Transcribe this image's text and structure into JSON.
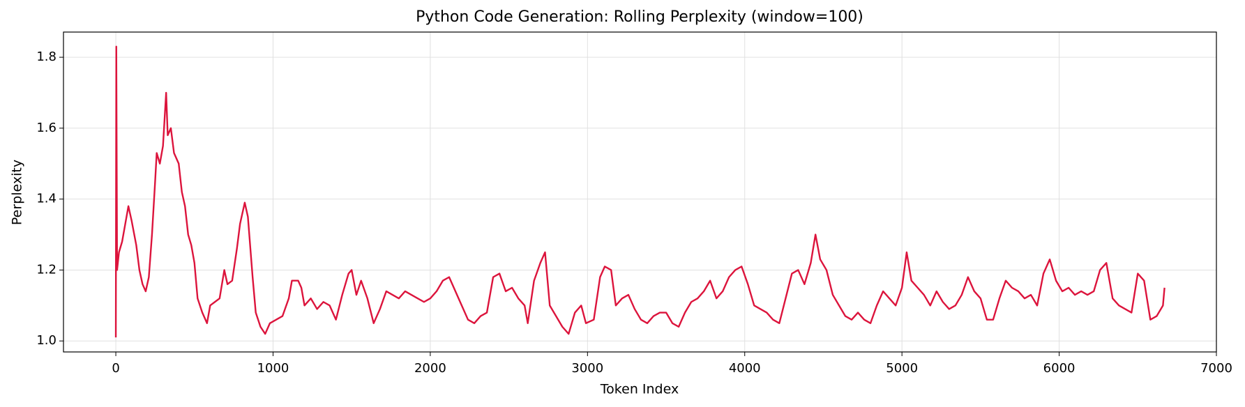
{
  "chart_data": {
    "type": "line",
    "title": "Python Code Generation: Rolling Perplexity (window=100)",
    "x_label": "Token Index",
    "y_label": "Perplexity",
    "xlim": [
      -333,
      7000
    ],
    "xticks": [
      0,
      1000,
      2000,
      3000,
      4000,
      5000,
      6000,
      7000
    ],
    "ylim": [
      0.969,
      1.871
    ],
    "yticks": [
      {
        "value": 1.0,
        "label": "1.0"
      },
      1.2,
      1.4,
      1.6,
      1.8
    ],
    "grid": true,
    "x": [
      0,
      3,
      8,
      20,
      40,
      60,
      80,
      100,
      130,
      150,
      170,
      190,
      210,
      230,
      250,
      260,
      280,
      300,
      320,
      330,
      350,
      370,
      400,
      420,
      440,
      460,
      480,
      500,
      520,
      550,
      580,
      600,
      630,
      660,
      690,
      710,
      740,
      770,
      790,
      820,
      840,
      870,
      890,
      920,
      950,
      980,
      1020,
      1060,
      1100,
      1120,
      1160,
      1180,
      1200,
      1240,
      1280,
      1320,
      1360,
      1400,
      1440,
      1480,
      1500,
      1530,
      1560,
      1600,
      1640,
      1680,
      1720,
      1760,
      1800,
      1840,
      1880,
      1920,
      1960,
      2000,
      2040,
      2080,
      2120,
      2160,
      2200,
      2240,
      2280,
      2320,
      2360,
      2400,
      2440,
      2480,
      2520,
      2560,
      2600,
      2620,
      2660,
      2700,
      2730,
      2760,
      2800,
      2840,
      2880,
      2920,
      2960,
      2990,
      3040,
      3080,
      3110,
      3150,
      3180,
      3220,
      3260,
      3300,
      3340,
      3380,
      3420,
      3460,
      3500,
      3540,
      3580,
      3620,
      3660,
      3700,
      3740,
      3780,
      3820,
      3860,
      3900,
      3940,
      3980,
      4020,
      4060,
      4100,
      4140,
      4180,
      4220,
      4260,
      4300,
      4340,
      4380,
      4420,
      4450,
      4480,
      4520,
      4560,
      4600,
      4640,
      4680,
      4720,
      4760,
      4800,
      4840,
      4880,
      4920,
      4960,
      5000,
      5030,
      5060,
      5100,
      5140,
      5180,
      5220,
      5260,
      5300,
      5340,
      5380,
      5420,
      5460,
      5500,
      5540,
      5580,
      5620,
      5660,
      5700,
      5740,
      5780,
      5820,
      5860,
      5900,
      5940,
      5980,
      6020,
      6060,
      6100,
      6140,
      6180,
      6220,
      6260,
      6300,
      6340,
      6380,
      6420,
      6460,
      6500,
      6540,
      6580,
      6620,
      6660,
      6670
    ],
    "series": [
      {
        "name": "Rolling Perplexity",
        "color": "#dc143c",
        "values": [
          1.01,
          1.83,
          1.2,
          1.25,
          1.28,
          1.33,
          1.38,
          1.34,
          1.27,
          1.2,
          1.16,
          1.14,
          1.18,
          1.3,
          1.45,
          1.53,
          1.5,
          1.55,
          1.7,
          1.58,
          1.6,
          1.53,
          1.5,
          1.42,
          1.38,
          1.3,
          1.27,
          1.22,
          1.12,
          1.08,
          1.05,
          1.1,
          1.11,
          1.12,
          1.2,
          1.16,
          1.17,
          1.26,
          1.33,
          1.39,
          1.35,
          1.18,
          1.08,
          1.04,
          1.02,
          1.05,
          1.06,
          1.07,
          1.12,
          1.17,
          1.17,
          1.15,
          1.1,
          1.12,
          1.09,
          1.11,
          1.1,
          1.06,
          1.13,
          1.19,
          1.2,
          1.13,
          1.17,
          1.12,
          1.05,
          1.09,
          1.14,
          1.13,
          1.12,
          1.14,
          1.13,
          1.12,
          1.11,
          1.12,
          1.14,
          1.17,
          1.18,
          1.14,
          1.1,
          1.06,
          1.05,
          1.07,
          1.08,
          1.18,
          1.19,
          1.14,
          1.15,
          1.12,
          1.1,
          1.05,
          1.17,
          1.22,
          1.25,
          1.1,
          1.07,
          1.04,
          1.02,
          1.08,
          1.1,
          1.05,
          1.06,
          1.18,
          1.21,
          1.2,
          1.1,
          1.12,
          1.13,
          1.09,
          1.06,
          1.05,
          1.07,
          1.08,
          1.08,
          1.05,
          1.04,
          1.08,
          1.11,
          1.12,
          1.14,
          1.17,
          1.12,
          1.14,
          1.18,
          1.2,
          1.21,
          1.16,
          1.1,
          1.09,
          1.08,
          1.06,
          1.05,
          1.12,
          1.19,
          1.2,
          1.16,
          1.22,
          1.3,
          1.23,
          1.2,
          1.13,
          1.1,
          1.07,
          1.06,
          1.08,
          1.06,
          1.05,
          1.1,
          1.14,
          1.12,
          1.1,
          1.15,
          1.25,
          1.17,
          1.15,
          1.13,
          1.1,
          1.14,
          1.11,
          1.09,
          1.1,
          1.13,
          1.18,
          1.14,
          1.12,
          1.06,
          1.06,
          1.12,
          1.17,
          1.15,
          1.14,
          1.12,
          1.13,
          1.1,
          1.19,
          1.23,
          1.17,
          1.14,
          1.15,
          1.13,
          1.14,
          1.13,
          1.14,
          1.2,
          1.22,
          1.12,
          1.1,
          1.09,
          1.08,
          1.19,
          1.17,
          1.06,
          1.07,
          1.1,
          1.15
        ]
      }
    ]
  }
}
